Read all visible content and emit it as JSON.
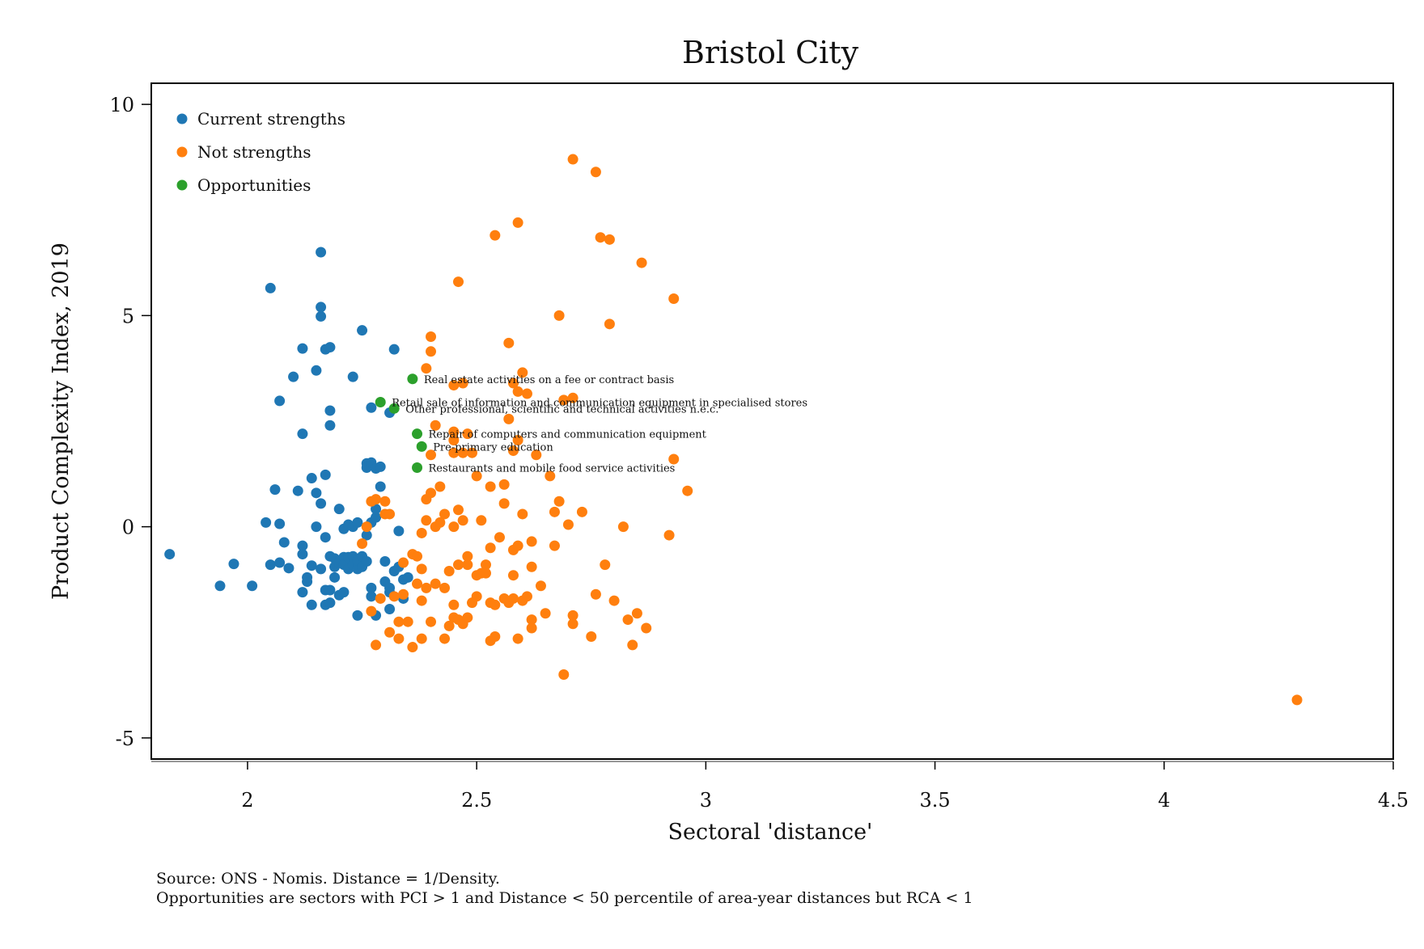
{
  "chart_data": {
    "type": "scatter",
    "title": "Bristol City",
    "xlabel": "Sectoral 'distance'",
    "ylabel": "Product Complexity Index, 2019",
    "xlim": [
      1.79,
      4.5
    ],
    "ylim": [
      -5.5,
      10.5
    ],
    "xticks": [
      {
        "v": 2,
        "label": "2"
      },
      {
        "v": 2.5,
        "label": "2.5"
      },
      {
        "v": 3,
        "label": "3"
      },
      {
        "v": 3.5,
        "label": "3.5"
      },
      {
        "v": 4,
        "label": "4"
      },
      {
        "v": 4.5,
        "label": "4.5"
      }
    ],
    "yticks": [
      {
        "v": 10,
        "label": "10"
      },
      {
        "v": 5,
        "label": "5"
      },
      {
        "v": 0,
        "label": "0"
      },
      {
        "v": -5,
        "label": "-5"
      }
    ],
    "grid": false,
    "legend_position": "top-left",
    "series": [
      {
        "name": "Current strengths",
        "color": "#1f77b4",
        "points": [
          [
            1.83,
            -0.65
          ],
          [
            1.94,
            -1.4
          ],
          [
            1.97,
            -0.88
          ],
          [
            2.01,
            -1.4
          ],
          [
            2.04,
            0.1
          ],
          [
            2.05,
            -0.9
          ],
          [
            2.05,
            5.65
          ],
          [
            2.06,
            0.88
          ],
          [
            2.07,
            2.98
          ],
          [
            2.07,
            0.07
          ],
          [
            2.07,
            -0.85
          ],
          [
            2.08,
            -0.37
          ],
          [
            2.09,
            -0.98
          ],
          [
            2.1,
            3.55
          ],
          [
            2.11,
            0.85
          ],
          [
            2.12,
            -1.55
          ],
          [
            2.12,
            -0.45
          ],
          [
            2.12,
            -0.65
          ],
          [
            2.12,
            2.2
          ],
          [
            2.12,
            4.22
          ],
          [
            2.13,
            -1.3
          ],
          [
            2.13,
            -1.2
          ],
          [
            2.14,
            1.15
          ],
          [
            2.14,
            -0.92
          ],
          [
            2.14,
            -1.85
          ],
          [
            2.15,
            0.8
          ],
          [
            2.15,
            3.7
          ],
          [
            2.15,
            0.0
          ],
          [
            2.16,
            0.55
          ],
          [
            2.16,
            -1.0
          ],
          [
            2.16,
            4.98
          ],
          [
            2.16,
            5.2
          ],
          [
            2.16,
            6.5
          ],
          [
            2.17,
            -0.25
          ],
          [
            2.17,
            1.23
          ],
          [
            2.17,
            4.2
          ],
          [
            2.17,
            -1.5
          ],
          [
            2.17,
            -1.85
          ],
          [
            2.18,
            -1.8
          ],
          [
            2.18,
            2.4
          ],
          [
            2.18,
            2.75
          ],
          [
            2.18,
            4.25
          ],
          [
            2.18,
            -0.7
          ],
          [
            2.18,
            -1.5
          ],
          [
            2.19,
            -0.75
          ],
          [
            2.19,
            -0.95
          ],
          [
            2.19,
            -1.2
          ],
          [
            2.2,
            -0.85
          ],
          [
            2.2,
            0.42
          ],
          [
            2.2,
            -1.62
          ],
          [
            2.21,
            -0.72
          ],
          [
            2.21,
            -0.9
          ],
          [
            2.21,
            -1.55
          ],
          [
            2.21,
            -0.05
          ],
          [
            2.22,
            -0.72
          ],
          [
            2.22,
            0.05
          ],
          [
            2.22,
            -1.0
          ],
          [
            2.23,
            -0.7
          ],
          [
            2.23,
            -0.9
          ],
          [
            2.23,
            3.55
          ],
          [
            2.23,
            0.0
          ],
          [
            2.24,
            -1.0
          ],
          [
            2.24,
            -0.8
          ],
          [
            2.24,
            0.1
          ],
          [
            2.24,
            -2.1
          ],
          [
            2.25,
            4.65
          ],
          [
            2.25,
            -0.95
          ],
          [
            2.25,
            -0.7
          ],
          [
            2.26,
            1.5
          ],
          [
            2.26,
            -0.82
          ],
          [
            2.26,
            1.4
          ],
          [
            2.26,
            -0.2
          ],
          [
            2.27,
            1.52
          ],
          [
            2.27,
            0.1
          ],
          [
            2.27,
            -1.45
          ],
          [
            2.27,
            2.82
          ],
          [
            2.27,
            -1.65
          ],
          [
            2.28,
            0.22
          ],
          [
            2.28,
            0.42
          ],
          [
            2.28,
            1.38
          ],
          [
            2.28,
            -2.1
          ],
          [
            2.29,
            1.42
          ],
          [
            2.29,
            0.95
          ],
          [
            2.3,
            -0.82
          ],
          [
            2.3,
            -1.3
          ],
          [
            2.31,
            -1.55
          ],
          [
            2.31,
            -1.45
          ],
          [
            2.31,
            -1.95
          ],
          [
            2.31,
            2.7
          ],
          [
            2.32,
            -1.05
          ],
          [
            2.32,
            4.2
          ],
          [
            2.33,
            -0.95
          ],
          [
            2.33,
            -0.1
          ],
          [
            2.34,
            -1.25
          ],
          [
            2.34,
            -1.7
          ],
          [
            2.35,
            -1.2
          ]
        ]
      },
      {
        "name": "Not strengths",
        "color": "#ff7f0e",
        "points": [
          [
            2.25,
            -0.4
          ],
          [
            2.26,
            0.0
          ],
          [
            2.27,
            -2.0
          ],
          [
            2.27,
            0.6
          ],
          [
            2.28,
            -2.8
          ],
          [
            2.28,
            0.65
          ],
          [
            2.29,
            -1.7
          ],
          [
            2.3,
            0.3
          ],
          [
            2.3,
            0.6
          ],
          [
            2.31,
            0.3
          ],
          [
            2.31,
            -2.5
          ],
          [
            2.32,
            -1.65
          ],
          [
            2.33,
            -2.65
          ],
          [
            2.33,
            -2.25
          ],
          [
            2.34,
            -0.85
          ],
          [
            2.34,
            -1.6
          ],
          [
            2.35,
            -2.25
          ],
          [
            2.36,
            -2.85
          ],
          [
            2.36,
            -0.65
          ],
          [
            2.37,
            -0.7
          ],
          [
            2.37,
            -1.35
          ],
          [
            2.38,
            -1.75
          ],
          [
            2.38,
            -1.0
          ],
          [
            2.38,
            -2.65
          ],
          [
            2.38,
            -0.15
          ],
          [
            2.39,
            0.65
          ],
          [
            2.39,
            0.15
          ],
          [
            2.39,
            -1.45
          ],
          [
            2.39,
            3.75
          ],
          [
            2.4,
            4.15
          ],
          [
            2.4,
            4.5
          ],
          [
            2.4,
            1.7
          ],
          [
            2.4,
            0.8
          ],
          [
            2.4,
            -2.25
          ],
          [
            2.41,
            2.4
          ],
          [
            2.41,
            -1.35
          ],
          [
            2.41,
            0.0
          ],
          [
            2.42,
            0.1
          ],
          [
            2.42,
            0.95
          ],
          [
            2.43,
            0.3
          ],
          [
            2.43,
            -1.45
          ],
          [
            2.43,
            -2.65
          ],
          [
            2.44,
            -2.35
          ],
          [
            2.44,
            -1.05
          ],
          [
            2.45,
            3.35
          ],
          [
            2.45,
            1.75
          ],
          [
            2.45,
            2.05
          ],
          [
            2.45,
            2.25
          ],
          [
            2.45,
            -2.15
          ],
          [
            2.45,
            -1.85
          ],
          [
            2.45,
            0.0
          ],
          [
            2.46,
            -2.2
          ],
          [
            2.46,
            -0.9
          ],
          [
            2.46,
            0.4
          ],
          [
            2.46,
            5.8
          ],
          [
            2.47,
            -2.3
          ],
          [
            2.47,
            3.4
          ],
          [
            2.47,
            1.75
          ],
          [
            2.47,
            0.15
          ],
          [
            2.48,
            2.2
          ],
          [
            2.48,
            -0.7
          ],
          [
            2.48,
            -2.15
          ],
          [
            2.48,
            -0.9
          ],
          [
            2.49,
            -1.8
          ],
          [
            2.49,
            1.75
          ],
          [
            2.5,
            1.2
          ],
          [
            2.5,
            -1.65
          ],
          [
            2.5,
            -1.15
          ],
          [
            2.51,
            0.15
          ],
          [
            2.51,
            -1.1
          ],
          [
            2.52,
            -0.9
          ],
          [
            2.52,
            -1.1
          ],
          [
            2.53,
            -1.8
          ],
          [
            2.53,
            -2.7
          ],
          [
            2.53,
            -0.5
          ],
          [
            2.53,
            0.95
          ],
          [
            2.54,
            6.9
          ],
          [
            2.54,
            -2.6
          ],
          [
            2.54,
            -1.85
          ],
          [
            2.55,
            -0.25
          ],
          [
            2.56,
            -1.7
          ],
          [
            2.56,
            0.55
          ],
          [
            2.56,
            1.0
          ],
          [
            2.57,
            -1.8
          ],
          [
            2.57,
            4.35
          ],
          [
            2.57,
            2.55
          ],
          [
            2.58,
            -1.7
          ],
          [
            2.58,
            -0.55
          ],
          [
            2.58,
            1.8
          ],
          [
            2.58,
            -1.15
          ],
          [
            2.58,
            3.4
          ],
          [
            2.59,
            -0.45
          ],
          [
            2.59,
            3.2
          ],
          [
            2.59,
            7.2
          ],
          [
            2.59,
            -2.65
          ],
          [
            2.59,
            2.05
          ],
          [
            2.6,
            -1.75
          ],
          [
            2.6,
            3.65
          ],
          [
            2.6,
            0.3
          ],
          [
            2.61,
            3.15
          ],
          [
            2.61,
            -1.65
          ],
          [
            2.62,
            -0.95
          ],
          [
            2.62,
            -0.35
          ],
          [
            2.62,
            -2.2
          ],
          [
            2.62,
            -2.4
          ],
          [
            2.63,
            1.7
          ],
          [
            2.64,
            -1.4
          ],
          [
            2.65,
            -2.05
          ],
          [
            2.66,
            1.2
          ],
          [
            2.67,
            -0.45
          ],
          [
            2.67,
            0.35
          ],
          [
            2.68,
            0.6
          ],
          [
            2.68,
            5.0
          ],
          [
            2.69,
            -3.5
          ],
          [
            2.69,
            3.0
          ],
          [
            2.7,
            0.05
          ],
          [
            2.71,
            -2.3
          ],
          [
            2.71,
            -2.1
          ],
          [
            2.71,
            3.05
          ],
          [
            2.71,
            8.7
          ],
          [
            2.73,
            0.35
          ],
          [
            2.75,
            -2.6
          ],
          [
            2.76,
            8.4
          ],
          [
            2.76,
            -1.6
          ],
          [
            2.77,
            6.85
          ],
          [
            2.78,
            -0.9
          ],
          [
            2.79,
            4.8
          ],
          [
            2.79,
            6.8
          ],
          [
            2.8,
            -1.75
          ],
          [
            2.82,
            0.0
          ],
          [
            2.83,
            -2.2
          ],
          [
            2.84,
            -2.8
          ],
          [
            2.85,
            -2.05
          ],
          [
            2.86,
            6.25
          ],
          [
            2.87,
            -2.4
          ],
          [
            2.92,
            -0.2
          ],
          [
            2.93,
            1.6
          ],
          [
            2.93,
            5.4
          ],
          [
            2.96,
            0.85
          ],
          [
            4.29,
            -4.1
          ]
        ]
      },
      {
        "name": "Opportunities",
        "color": "#2ca02c",
        "points": [
          [
            2.36,
            3.5
          ],
          [
            2.29,
            2.95
          ],
          [
            2.32,
            2.8
          ],
          [
            2.37,
            2.2
          ],
          [
            2.38,
            1.9
          ],
          [
            2.37,
            1.4
          ]
        ]
      }
    ],
    "annotations": [
      {
        "x": 2.36,
        "y": 3.5,
        "text": "Real estate activities on a fee or contract basis"
      },
      {
        "x": 2.29,
        "y": 2.95,
        "text": "Retail sale of information and communication equipment in specialised stores"
      },
      {
        "x": 2.32,
        "y": 2.8,
        "text": "Other professional, scientific and technical activities n.e.c."
      },
      {
        "x": 2.37,
        "y": 2.2,
        "text": "Repair of computers and communication equipment"
      },
      {
        "x": 2.38,
        "y": 1.9,
        "text": "Pre-primary education"
      },
      {
        "x": 2.37,
        "y": 1.4,
        "text": "Restaurants and mobile food service activities"
      }
    ]
  },
  "notes": {
    "line1": "Source: ONS - Nomis. Distance = 1/Density.",
    "line2": "Opportunities are sectors with PCI > 1 and Distance < 50 percentile of area-year distances but RCA < 1"
  }
}
